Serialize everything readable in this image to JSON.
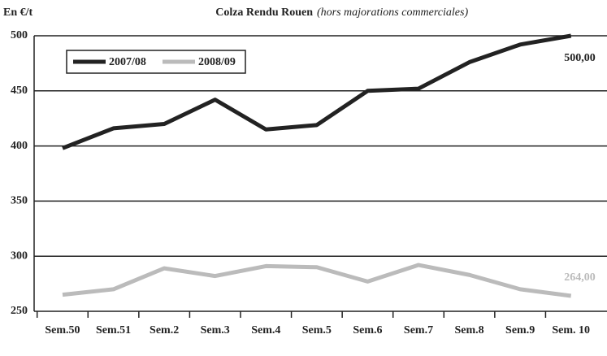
{
  "chart_data": {
    "type": "line",
    "title": "Colza Rendu Rouen",
    "subtitle": "(hors majorations commerciales)",
    "y_label": "En €/t",
    "categories": [
      "Sem.50",
      "Sem.51",
      "Sem.2",
      "Sem.3",
      "Sem.4",
      "Sem.5",
      "Sem.6",
      "Sem.7",
      "Sem.8",
      "Sem.9",
      "Sem. 10"
    ],
    "series": [
      {
        "name": "2007/08",
        "color": "#222222",
        "values": [
          398,
          416,
          420,
          442,
          415,
          419,
          450,
          452,
          476,
          492,
          500
        ],
        "value_labels": [
          null,
          null,
          null,
          null,
          null,
          null,
          null,
          null,
          null,
          null,
          "500,00"
        ]
      },
      {
        "name": "2008/09",
        "color": "#bbbbbb",
        "values": [
          265,
          270,
          289,
          282,
          291,
          290,
          277,
          292,
          283,
          270,
          264
        ],
        "value_labels": [
          null,
          null,
          null,
          null,
          null,
          null,
          null,
          null,
          null,
          null,
          "264,00"
        ]
      }
    ],
    "ylim": [
      250,
      500
    ],
    "yticks": [
      250,
      300,
      350,
      400,
      450,
      500
    ],
    "grid": true
  }
}
